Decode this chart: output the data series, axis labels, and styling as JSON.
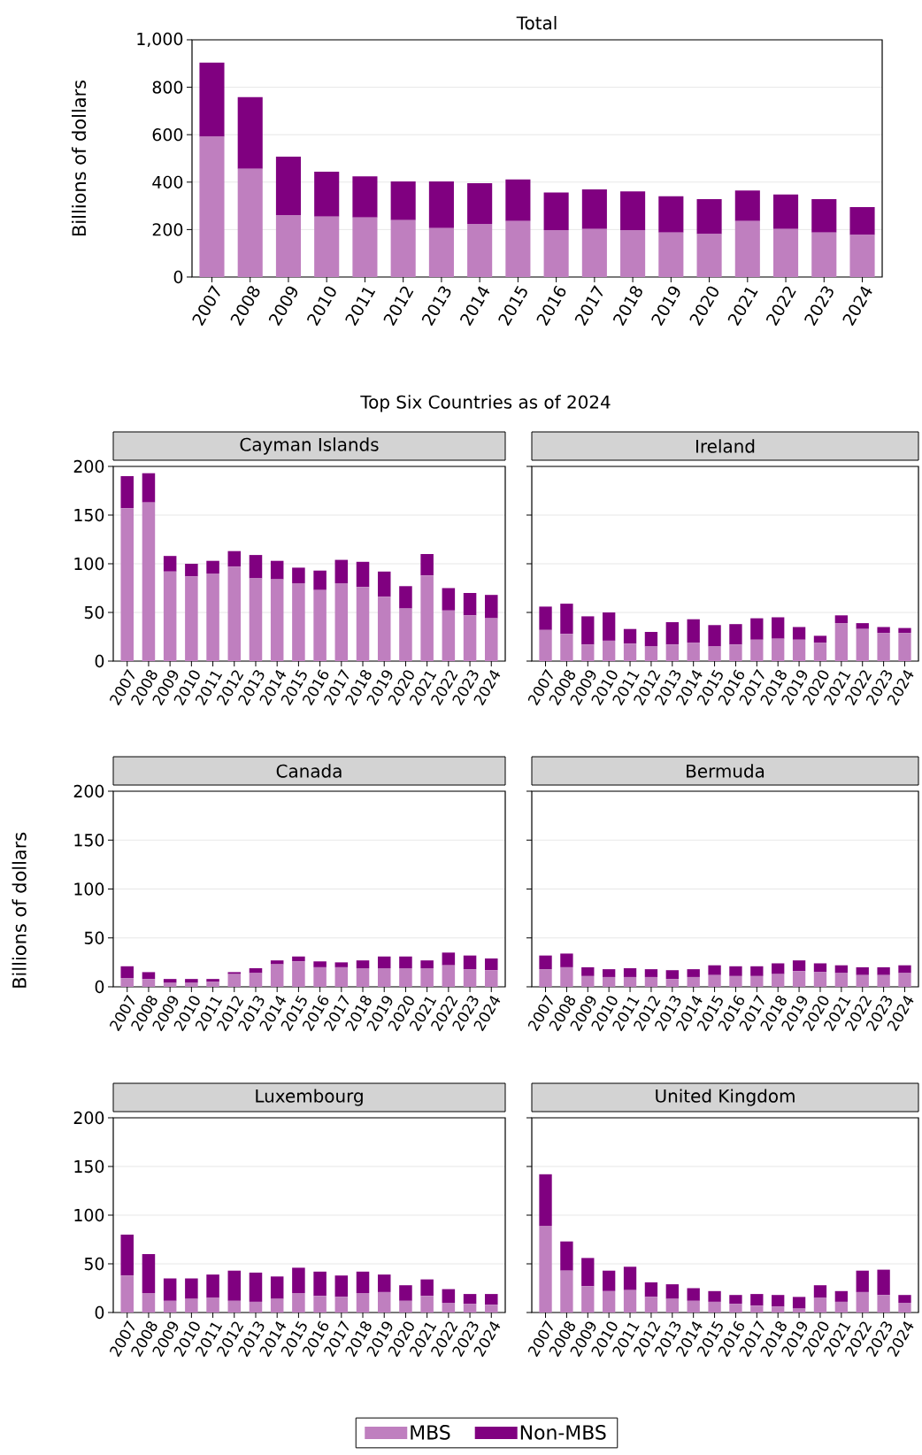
{
  "chart_data": [
    {
      "type": "bar",
      "title": "Total",
      "ylabel": "Billions of dollars",
      "stacked": true,
      "grid": "y",
      "categories": [
        "2007",
        "2008",
        "2009",
        "2010",
        "2011",
        "2012",
        "2013",
        "2014",
        "2015",
        "2016",
        "2017",
        "2018",
        "2019",
        "2020",
        "2021",
        "2022",
        "2023",
        "2024"
      ],
      "ylim": [
        0,
        1000
      ],
      "yticks": [
        0,
        200,
        400,
        600,
        800,
        {
          "value": 1000,
          "label": "1,000"
        }
      ],
      "series": [
        {
          "color": "#bf7fbf",
          "values": [
            591,
            456,
            261,
            255,
            251,
            240,
            206,
            224,
            236,
            198,
            202,
            198,
            187,
            181,
            236,
            202,
            187,
            177
          ]
        },
        {
          "color": "#800080",
          "values": [
            313,
            302,
            246,
            189,
            173,
            163,
            197,
            171,
            175,
            158,
            167,
            163,
            153,
            147,
            129,
            146,
            141,
            118
          ]
        }
      ]
    },
    {
      "type": "bar",
      "title": "Cayman Islands",
      "subtitle": "Top Six Countries as of 2024",
      "stacked": true,
      "grid": "y",
      "categories": [
        "2007",
        "2008",
        "2009",
        "2010",
        "2011",
        "2012",
        "2013",
        "2014",
        "2015",
        "2016",
        "2017",
        "2018",
        "2019",
        "2020",
        "2021",
        "2022",
        "2023",
        "2024"
      ],
      "ylim": [
        0,
        200
      ],
      "yticks": [
        0,
        50,
        100,
        150,
        200
      ],
      "series": [
        {
          "color": "#bf7fbf",
          "values": [
            157,
            163,
            92,
            87,
            90,
            97,
            85,
            84,
            80,
            73,
            80,
            76,
            66,
            54,
            88,
            52,
            47,
            44
          ]
        },
        {
          "color": "#800080",
          "values": [
            33,
            30,
            16,
            13,
            13,
            16,
            24,
            19,
            16,
            20,
            24,
            26,
            26,
            23,
            22,
            23,
            23,
            24
          ]
        }
      ]
    },
    {
      "type": "bar",
      "title": "Ireland",
      "stacked": true,
      "grid": "y",
      "tick_labels": "x",
      "categories": [
        "2007",
        "2008",
        "2009",
        "2010",
        "2011",
        "2012",
        "2013",
        "2014",
        "2015",
        "2016",
        "2017",
        "2018",
        "2019",
        "2020",
        "2021",
        "2022",
        "2023",
        "2024"
      ],
      "ylim": [
        0,
        200
      ],
      "yticks": [
        0,
        50,
        100,
        150,
        200
      ],
      "series": [
        {
          "color": "#bf7fbf",
          "values": [
            32,
            28,
            17,
            21,
            18,
            15,
            17,
            19,
            15,
            17,
            22,
            23,
            22,
            19,
            39,
            33,
            29,
            29
          ]
        },
        {
          "color": "#800080",
          "values": [
            24,
            31,
            29,
            29,
            15,
            15,
            23,
            24,
            22,
            21,
            22,
            22,
            13,
            7,
            8,
            6,
            6,
            5
          ]
        }
      ]
    },
    {
      "type": "bar",
      "title": "Canada",
      "ylabel": "Billions of dollars",
      "stacked": true,
      "grid": "y",
      "categories": [
        "2007",
        "2008",
        "2009",
        "2010",
        "2011",
        "2012",
        "2013",
        "2014",
        "2015",
        "2016",
        "2017",
        "2018",
        "2019",
        "2020",
        "2021",
        "2022",
        "2023",
        "2024"
      ],
      "ylim": [
        0,
        200
      ],
      "yticks": [
        0,
        50,
        100,
        150,
        200
      ],
      "series": [
        {
          "color": "#bf7fbf",
          "values": [
            9,
            8,
            4,
            4,
            5,
            13,
            14,
            23,
            26,
            20,
            20,
            19,
            19,
            19,
            19,
            22,
            18,
            17
          ]
        },
        {
          "color": "#800080",
          "values": [
            12,
            7,
            4,
            4,
            3,
            2,
            5,
            4,
            5,
            6,
            5,
            8,
            12,
            12,
            8,
            13,
            14,
            12
          ]
        }
      ]
    },
    {
      "type": "bar",
      "title": "Bermuda",
      "stacked": true,
      "grid": "y",
      "tick_labels": "x",
      "categories": [
        "2007",
        "2008",
        "2009",
        "2010",
        "2011",
        "2012",
        "2013",
        "2014",
        "2015",
        "2016",
        "2017",
        "2018",
        "2019",
        "2020",
        "2021",
        "2022",
        "2023",
        "2024"
      ],
      "ylim": [
        0,
        200
      ],
      "yticks": [
        0,
        50,
        100,
        150,
        200
      ],
      "series": [
        {
          "color": "#bf7fbf",
          "values": [
            18,
            20,
            11,
            10,
            10,
            10,
            8,
            10,
            12,
            11,
            11,
            13,
            16,
            15,
            14,
            12,
            12,
            14
          ]
        },
        {
          "color": "#800080",
          "values": [
            14,
            14,
            9,
            8,
            9,
            8,
            9,
            8,
            10,
            10,
            10,
            11,
            11,
            9,
            8,
            8,
            8,
            8
          ]
        }
      ]
    },
    {
      "type": "bar",
      "title": "Luxembourg",
      "stacked": true,
      "grid": "y",
      "categories": [
        "2007",
        "2008",
        "2009",
        "2010",
        "2011",
        "2012",
        "2013",
        "2014",
        "2015",
        "2016",
        "2017",
        "2018",
        "2019",
        "2020",
        "2021",
        "2022",
        "2023",
        "2024"
      ],
      "ylim": [
        0,
        200
      ],
      "yticks": [
        0,
        50,
        100,
        150,
        200
      ],
      "series": [
        {
          "color": "#bf7fbf",
          "values": [
            38,
            20,
            12,
            14,
            15,
            12,
            11,
            14,
            20,
            17,
            16,
            20,
            21,
            12,
            17,
            10,
            9,
            8
          ]
        },
        {
          "color": "#800080",
          "values": [
            42,
            40,
            23,
            21,
            24,
            31,
            30,
            23,
            26,
            25,
            22,
            22,
            18,
            16,
            17,
            14,
            10,
            11
          ]
        }
      ]
    },
    {
      "type": "bar",
      "title": "United Kingdom",
      "stacked": true,
      "grid": "y",
      "tick_labels": "x",
      "legend": "bottom",
      "categories": [
        "2007",
        "2008",
        "2009",
        "2010",
        "2011",
        "2012",
        "2013",
        "2014",
        "2015",
        "2016",
        "2017",
        "2018",
        "2019",
        "2020",
        "2021",
        "2022",
        "2023",
        "2024"
      ],
      "ylim": [
        0,
        200
      ],
      "yticks": [
        0,
        50,
        100,
        150,
        200
      ],
      "series": [
        {
          "name": "MBS",
          "color": "#bf7fbf",
          "values": [
            89,
            43,
            27,
            22,
            23,
            16,
            14,
            12,
            11,
            9,
            7,
            6,
            4,
            15,
            11,
            21,
            18,
            10
          ]
        },
        {
          "name": "Non-MBS",
          "color": "#800080",
          "values": [
            53,
            30,
            29,
            21,
            24,
            15,
            15,
            13,
            11,
            9,
            12,
            12,
            12,
            13,
            11,
            22,
            26,
            8
          ]
        }
      ]
    }
  ]
}
